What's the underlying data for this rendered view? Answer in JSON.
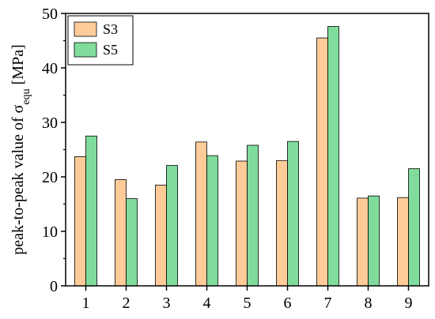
{
  "chart_data": {
    "type": "bar",
    "title": "",
    "xlabel": "",
    "ylabel": {
      "prefix": "peak-to-peak value of σ",
      "subscript": "equ",
      "suffix": " [MPa]"
    },
    "categories": [
      "1",
      "2",
      "3",
      "4",
      "5",
      "6",
      "7",
      "8",
      "9"
    ],
    "ylim": [
      0,
      50
    ],
    "yticks": [
      0,
      10,
      20,
      30,
      40,
      50
    ],
    "grid": false,
    "legend_position": "top-left",
    "series": [
      {
        "name": "S3",
        "color": "#FFCC99",
        "values": [
          23.7,
          19.5,
          18.5,
          26.4,
          22.9,
          23.0,
          45.5,
          16.1,
          16.2
        ]
      },
      {
        "name": "S5",
        "color": "#80DC9C",
        "values": [
          27.5,
          16.0,
          22.1,
          23.9,
          25.8,
          26.5,
          47.6,
          16.5,
          21.5
        ]
      }
    ]
  }
}
